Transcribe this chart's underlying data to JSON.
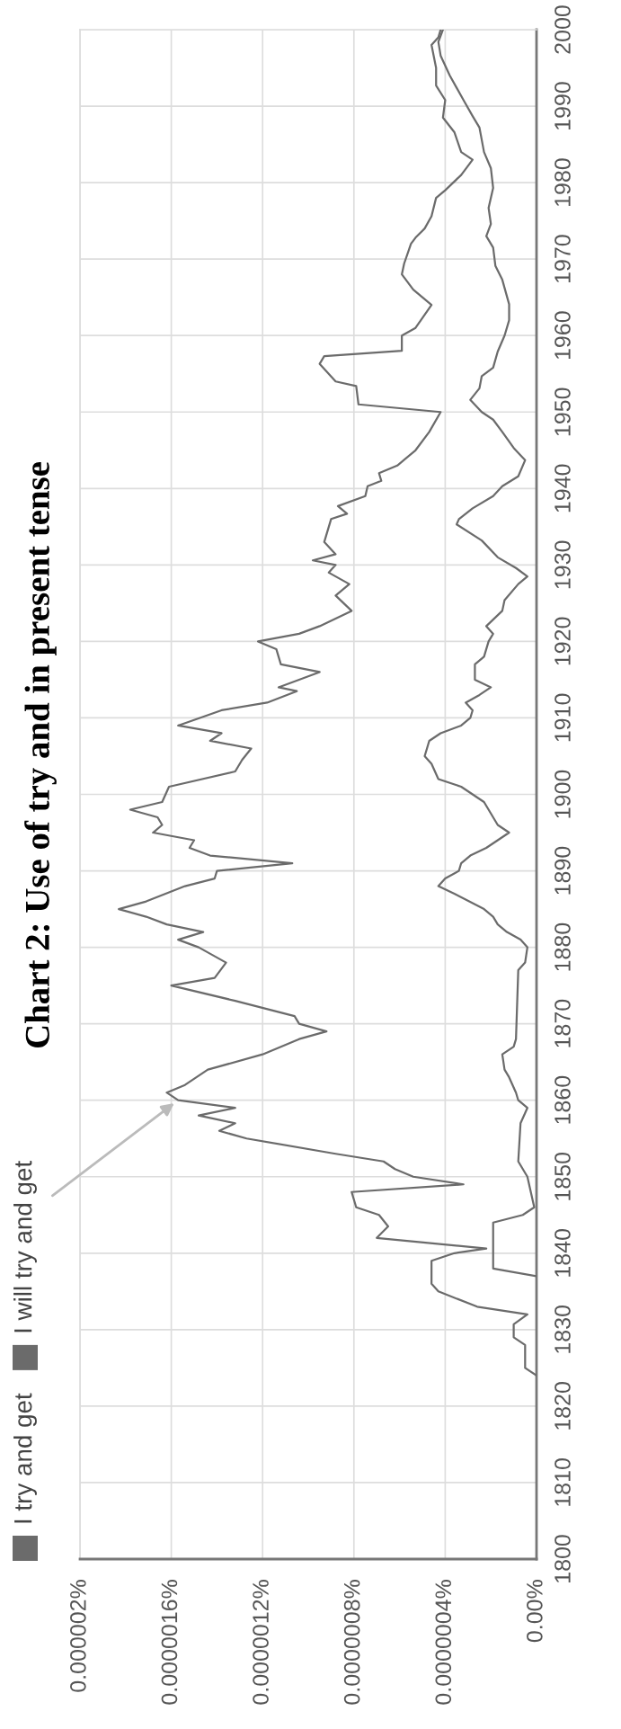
{
  "chart_data": {
    "type": "line",
    "title": "Chart 2: Use of try and in present tense",
    "ylim": [
      1800,
      2000
    ],
    "yticks": [
      1800,
      1810,
      1820,
      1830,
      1840,
      1850,
      1860,
      1870,
      1880,
      1890,
      1900,
      1910,
      1920,
      1930,
      1940,
      1950,
      1960,
      1970,
      1980,
      1990,
      2000
    ],
    "xlim": [
      2e-06,
      0
    ],
    "xticks": [
      {
        "value": 0,
        "label": "0.00%"
      },
      {
        "value": 4e-07,
        "label": "0.0000004%"
      },
      {
        "value": 8e-07,
        "label": "0.0000008%"
      },
      {
        "value": 1.2e-06,
        "label": "0.0000012%"
      },
      {
        "value": 1.6e-06,
        "label": "0.0000016%"
      },
      {
        "value": 2e-06,
        "label": "0.000002%"
      }
    ],
    "grid": true,
    "legend": "left",
    "series": [
      {
        "name": "I try and get",
        "color": "#6b6b6b",
        "values": [
          1837,
          1838,
          1844,
          1845,
          1846,
          1850,
          1852,
          1857,
          1859,
          1860,
          1861,
          1863,
          1864,
          1866,
          1867,
          1868,
          1877,
          1878,
          1880,
          1881,
          1882,
          1883,
          1884,
          1885,
          1887,
          1888,
          1889,
          1890,
          1891,
          1892,
          1893,
          1894,
          1895,
          1896,
          1898,
          1899,
          1901,
          1902,
          1904,
          1905,
          1907,
          1908,
          1909,
          1910,
          1911,
          1912,
          1913,
          1914,
          1915,
          1917,
          1918,
          1920,
          1921,
          1922,
          1924,
          1925.4,
          1927.5,
          1928.5,
          1929.6,
          1931,
          1933.2,
          1935.3,
          1936,
          1937.4,
          1939,
          1940.3,
          1941.6,
          1943.7,
          1945.3,
          1947.4,
          1949,
          1950,
          1951.6,
          1953.1,
          1954.7,
          1955.8,
          1957.9,
          1960,
          1962,
          1964.1,
          1967.3,
          1969.1,
          1971.5,
          1973,
          1974.6,
          1976.7,
          1979.3,
          1981.9,
          1984,
          1987.2,
          1988.7,
          1990.8,
          1992.4,
          1994,
          1996.6,
          1998.4,
          2000
        ],
        "x": [
          0,
          1.9e-07,
          1.9e-07,
          6e-08,
          1e-08,
          4e-08,
          8e-08,
          7e-08,
          4e-08,
          8e-08,
          9e-08,
          1.2e-07,
          1.4e-07,
          1.5e-07,
          1e-07,
          9e-08,
          8e-08,
          5e-08,
          4e-08,
          7e-08,
          1.3e-07,
          1.7e-07,
          1.9e-07,
          2.3e-07,
          3.6e-07,
          4.3e-07,
          4e-07,
          3.4e-07,
          3.3e-07,
          2.9e-07,
          2.2e-07,
          1.7e-07,
          1.2e-07,
          1.7e-07,
          2.1e-07,
          2.3e-07,
          3.3e-07,
          4.3e-07,
          4.6e-07,
          4.9e-07,
          4.7e-07,
          4.2e-07,
          3.3e-07,
          2.9e-07,
          2.8e-07,
          3.1e-07,
          2.5e-07,
          2e-07,
          2.7e-07,
          2.7e-07,
          2.3e-07,
          2.1e-07,
          1.9e-07,
          2.2e-07,
          1.5e-07,
          1.4e-07,
          8e-08,
          4e-08,
          9e-08,
          1.7e-07,
          2.4e-07,
          3.5e-07,
          3.4e-07,
          2.8e-07,
          1.9e-07,
          1.5e-07,
          8e-08,
          5e-08,
          1e-07,
          1.5e-07,
          1.9e-07,
          2.4e-07,
          2.9e-07,
          2.5e-07,
          2.4e-07,
          1.9e-07,
          1.7e-07,
          1.4e-07,
          1.2e-07,
          1.2e-07,
          1.5e-07,
          1.8e-07,
          1.9e-07,
          2.2e-07,
          2e-07,
          2.1e-07,
          1.9e-07,
          2e-07,
          2.3e-07,
          2.5e-07,
          2.8e-07,
          3.2e-07,
          3.5e-07,
          3.8e-07,
          4.2e-07,
          4.3e-07,
          4.1e-07
        ]
      },
      {
        "name": "I will try and get",
        "color": "#6b6b6b",
        "values": [
          1824,
          1825,
          1828,
          1829,
          1830.7,
          1832,
          1833,
          1835,
          1836,
          1839,
          1840,
          1840.6,
          1842,
          1843.5,
          1845,
          1846,
          1848,
          1849,
          1850,
          1851,
          1852,
          1853,
          1855,
          1856,
          1857,
          1858,
          1859,
          1860,
          1861,
          1862,
          1864,
          1866,
          1868,
          1869,
          1870,
          1871,
          1873,
          1875,
          1876,
          1878,
          1879,
          1880,
          1881,
          1882,
          1883,
          1884,
          1885,
          1886,
          1888,
          1889,
          1890,
          1891,
          1892,
          1893,
          1894,
          1895,
          1896,
          1897,
          1898,
          1899,
          1901,
          1903,
          1904.5,
          1906,
          1907,
          1908,
          1909,
          1911,
          1912,
          1913.5,
          1914,
          1916,
          1917,
          1919,
          1920,
          1921,
          1922,
          1924,
          1926,
          1927.5,
          1929,
          1930,
          1930.6,
          1931.4,
          1933,
          1936,
          1936.7,
          1937.7,
          1939,
          1940.3,
          1941,
          1942,
          1943,
          1945,
          1947.4,
          1950,
          1951,
          1953.4,
          1954,
          1956.3,
          1957.3,
          1958,
          1960,
          1961,
          1964,
          1966,
          1968,
          1969.4,
          1972,
          1972.8,
          1974,
          1975.6,
          1978,
          1979,
          1981,
          1983,
          1984,
          1986.6,
          1988.5,
          1990.8,
          1992.7,
          1995,
          1998,
          1999,
          2000
        ],
        "x": [
          0,
          5e-08,
          5e-08,
          1e-07,
          1e-07,
          4e-08,
          2.6e-07,
          4.3e-07,
          4.6e-07,
          4.6e-07,
          3.6e-07,
          2.2e-07,
          7e-07,
          6.5e-07,
          6.9e-07,
          7.9e-07,
          8.1e-07,
          3.2e-07,
          5.4e-07,
          6.2e-07,
          6.7e-07,
          8.8e-07,
          1.27e-06,
          1.39e-06,
          1.32e-06,
          1.48e-06,
          1.32e-06,
          1.57e-06,
          1.62e-06,
          1.54e-06,
          1.44e-06,
          1.2e-06,
          1.04e-06,
          9.2e-07,
          1.04e-06,
          1.06e-06,
          1.32e-06,
          1.6e-06,
          1.41e-06,
          1.36e-06,
          1.42e-06,
          1.48e-06,
          1.57e-06,
          1.46e-06,
          1.62e-06,
          1.71e-06,
          1.83e-06,
          1.71e-06,
          1.54e-06,
          1.41e-06,
          1.4e-06,
          1.07e-06,
          1.43e-06,
          1.52e-06,
          1.5e-06,
          1.68e-06,
          1.64e-06,
          1.66e-06,
          1.78e-06,
          1.64e-06,
          1.61e-06,
          1.32e-06,
          1.29e-06,
          1.25e-06,
          1.43e-06,
          1.38e-06,
          1.57e-06,
          1.38e-06,
          1.18e-06,
          1.05e-06,
          1.13e-06,
          9.5e-07,
          1.12e-06,
          1.14e-06,
          1.22e-06,
          1.04e-06,
          9.5e-07,
          8.1e-07,
          8.8e-07,
          8.2e-07,
          9.1e-07,
          8.8e-07,
          9.8e-07,
          8.8e-07,
          9.3e-07,
          9e-07,
          8.3e-07,
          8.7e-07,
          7.5e-07,
          7.4e-07,
          6.8e-07,
          6.9e-07,
          6.1e-07,
          5.3e-07,
          4.7e-07,
          4.2e-07,
          7.8e-07,
          7.9e-07,
          8.8e-07,
          9.5e-07,
          9.3e-07,
          5.9e-07,
          5.9e-07,
          5.3e-07,
          4.6e-07,
          5.4e-07,
          5.9e-07,
          5.8e-07,
          5.5e-07,
          5.3e-07,
          4.9e-07,
          4.6e-07,
          4.4e-07,
          4e-07,
          3.3e-07,
          2.8e-07,
          3.3e-07,
          3.6e-07,
          4.1e-07,
          4e-07,
          4.4e-07,
          4.4e-07,
          4.6e-07,
          4.3e-07,
          4.2e-07
        ]
      }
    ]
  }
}
